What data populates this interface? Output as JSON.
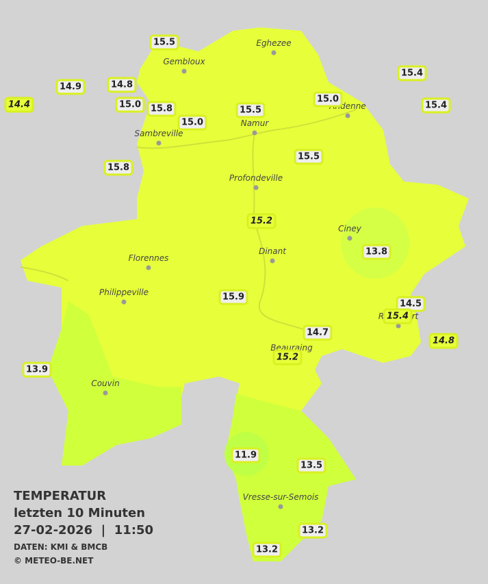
{
  "legend": {
    "title": "TEMPERATUR",
    "period": "letzten 10 Minuten",
    "datetime": "27-02-2026  |  11:50",
    "source": "DATEN: KMI & BMCB",
    "copyright": "© METEO-BE.NET"
  },
  "towns": [
    "Eghezee",
    "Gembloux",
    "Andenne",
    "Namur",
    "Sambreville",
    "Profondeville",
    "Ciney",
    "Dinant",
    "Florennes",
    "Philippeville",
    "Rochefort",
    "Beauraing",
    "Couvin",
    "Vresse-sur-Semois"
  ],
  "stations": [
    "15.5",
    "14.9",
    "14.8",
    "14.4",
    "15.0",
    "15.8",
    "15.0",
    "15.5",
    "15.0",
    "15.4",
    "15.4",
    "15.5",
    "15.8",
    "15.2",
    "13.8",
    "15.9",
    "14.5",
    "15.4",
    "14.8",
    "14.7",
    "15.2",
    "13.9",
    "11.9",
    "13.5",
    "13.2",
    "13.2"
  ]
}
